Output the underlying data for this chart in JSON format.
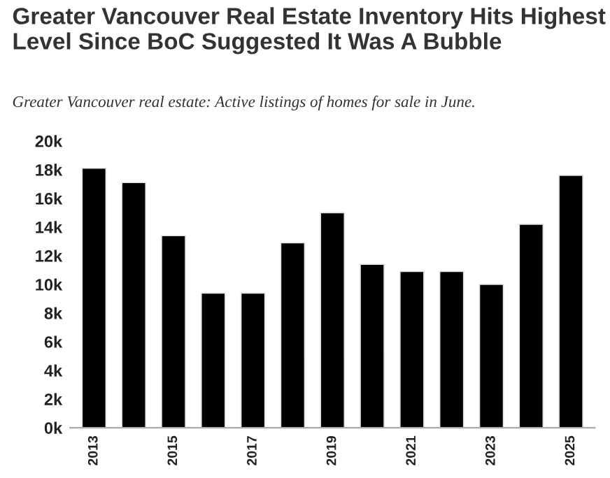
{
  "chart_data": {
    "type": "bar",
    "title": "Greater Vancouver Real Estate Inventory Hits Highest Level Since BoC Suggested It Was A Bubble",
    "subtitle": "Greater Vancouver real estate: Active listings of homes for sale in June.",
    "categories": [
      "2013",
      null,
      "2015",
      null,
      "2017",
      null,
      "2019",
      null,
      "2021",
      null,
      "2023",
      null,
      "2025"
    ],
    "values": [
      18100,
      17100,
      13400,
      9400,
      9400,
      12900,
      15000,
      11400,
      10900,
      10900,
      10000,
      14200,
      17600
    ],
    "color": "#000000",
    "ylim": [
      0,
      20000
    ],
    "yticks": [
      {
        "value": 0,
        "label": "0k"
      },
      {
        "value": 2000,
        "label": "2k"
      },
      {
        "value": 4000,
        "label": "4k"
      },
      {
        "value": 6000,
        "label": "6k"
      },
      {
        "value": 8000,
        "label": "8k"
      },
      {
        "value": 10000,
        "label": "10k"
      },
      {
        "value": 12000,
        "label": "12k"
      },
      {
        "value": 14000,
        "label": "14k"
      },
      {
        "value": 16000,
        "label": "16k"
      },
      {
        "value": 18000,
        "label": "18k"
      },
      {
        "value": 20000,
        "label": "20k"
      }
    ],
    "grid": false
  }
}
